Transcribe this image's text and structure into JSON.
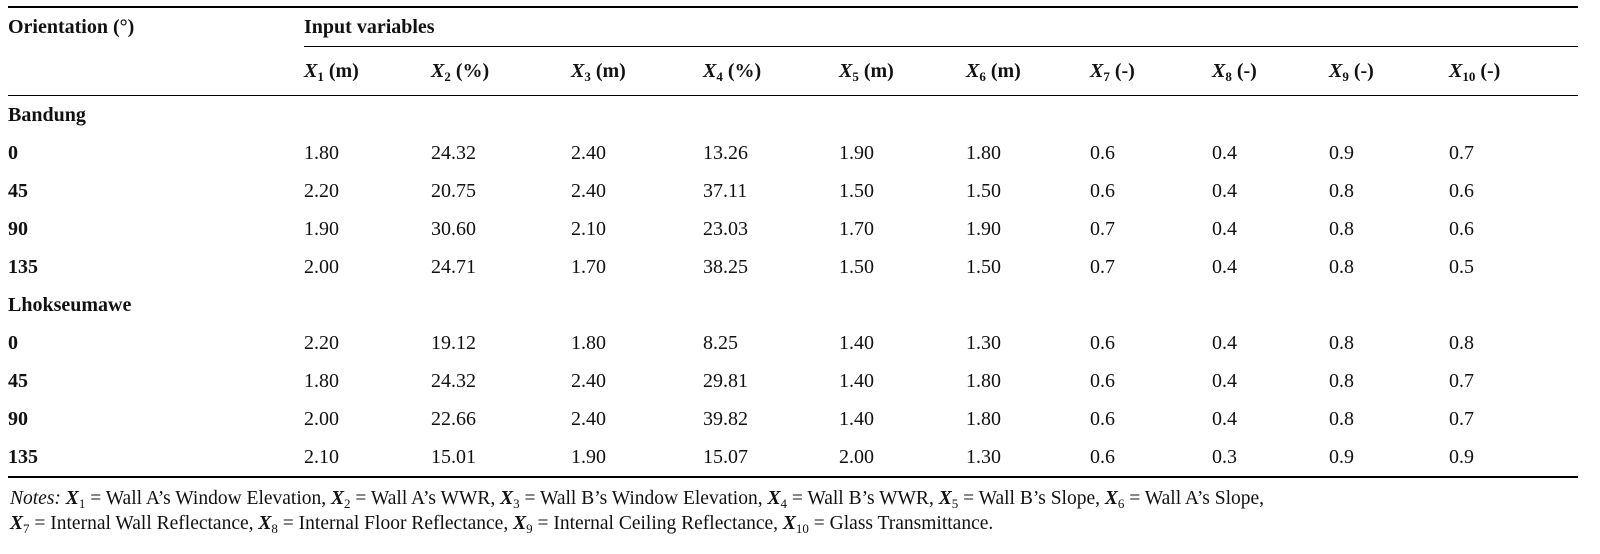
{
  "header": {
    "orientation": "Orientation (°)",
    "input_variables": "Input variables",
    "columns": [
      {
        "var": "X",
        "sub": "1",
        "unit": " (m)"
      },
      {
        "var": "X",
        "sub": "2",
        "unit": " (%)"
      },
      {
        "var": "X",
        "sub": "3",
        "unit": " (m)"
      },
      {
        "var": "X",
        "sub": "4",
        "unit": " (%)"
      },
      {
        "var": "X",
        "sub": "5",
        "unit": " (m)"
      },
      {
        "var": "X",
        "sub": "6",
        "unit": " (m)"
      },
      {
        "var": "X",
        "sub": "7",
        "unit": " (-)"
      },
      {
        "var": "X",
        "sub": "8",
        "unit": " (-)"
      },
      {
        "var": "X",
        "sub": "9",
        "unit": " (-)"
      },
      {
        "var": "X",
        "sub": "10",
        "unit": " (-)"
      }
    ]
  },
  "groups": [
    {
      "name": "Bandung",
      "rows": [
        {
          "orientation": "0",
          "values": [
            "1.80",
            "24.32",
            "2.40",
            "13.26",
            "1.90",
            "1.80",
            "0.6",
            "0.4",
            "0.9",
            "0.7"
          ]
        },
        {
          "orientation": "45",
          "values": [
            "2.20",
            "20.75",
            "2.40",
            "37.11",
            "1.50",
            "1.50",
            "0.6",
            "0.4",
            "0.8",
            "0.6"
          ]
        },
        {
          "orientation": "90",
          "values": [
            "1.90",
            "30.60",
            "2.10",
            "23.03",
            "1.70",
            "1.90",
            "0.7",
            "0.4",
            "0.8",
            "0.6"
          ]
        },
        {
          "orientation": "135",
          "values": [
            "2.00",
            "24.71",
            "1.70",
            "38.25",
            "1.50",
            "1.50",
            "0.7",
            "0.4",
            "0.8",
            "0.5"
          ]
        }
      ]
    },
    {
      "name": "Lhokseumawe",
      "rows": [
        {
          "orientation": "0",
          "values": [
            "2.20",
            "19.12",
            "1.80",
            "8.25",
            "1.40",
            "1.30",
            "0.6",
            "0.4",
            "0.8",
            "0.8"
          ]
        },
        {
          "orientation": "45",
          "values": [
            "1.80",
            "24.32",
            "2.40",
            "29.81",
            "1.40",
            "1.80",
            "0.6",
            "0.4",
            "0.8",
            "0.7"
          ]
        },
        {
          "orientation": "90",
          "values": [
            "2.00",
            "22.66",
            "2.40",
            "39.82",
            "1.40",
            "1.80",
            "0.6",
            "0.4",
            "0.8",
            "0.7"
          ]
        },
        {
          "orientation": "135",
          "values": [
            "2.10",
            "15.01",
            "1.90",
            "15.07",
            "2.00",
            "1.30",
            "0.6",
            "0.3",
            "0.9",
            "0.9"
          ]
        }
      ]
    }
  ],
  "notes": {
    "label": "Notes:",
    "items": [
      {
        "var": "X",
        "sub": "1",
        "text": " = Wall A’s Window Elevation"
      },
      {
        "var": "X",
        "sub": "2",
        "text": " = Wall A’s WWR"
      },
      {
        "var": "X",
        "sub": "3",
        "text": " = Wall B’s Window Elevation"
      },
      {
        "var": "X",
        "sub": "4",
        "text": " = Wall B’s WWR"
      },
      {
        "var": "X",
        "sub": "5",
        "text": " = Wall B’s Slope"
      },
      {
        "var": "X",
        "sub": "6",
        "text": " = Wall A’s Slope"
      },
      {
        "var": "X",
        "sub": "7",
        "text": " = Internal Wall Reflectance"
      },
      {
        "var": "X",
        "sub": "8",
        "text": " = Internal Floor Reflectance"
      },
      {
        "var": "X",
        "sub": "9",
        "text": " = Internal Ceiling Reflectance"
      },
      {
        "var": "X",
        "sub": "10",
        "text": " = Glass Transmittance."
      }
    ]
  }
}
